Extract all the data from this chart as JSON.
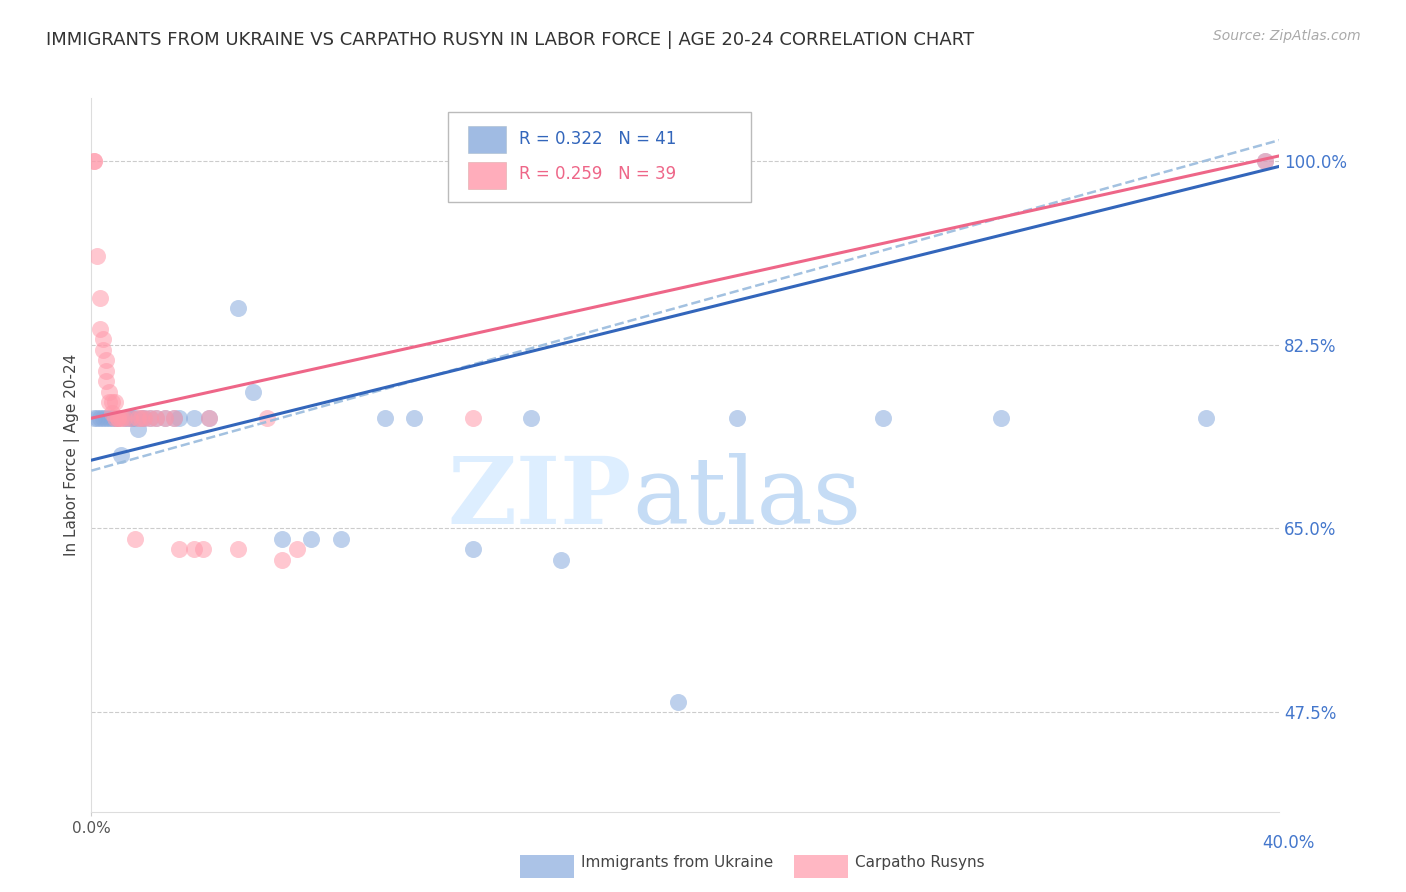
{
  "title": "IMMIGRANTS FROM UKRAINE VS CARPATHO RUSYN IN LABOR FORCE | AGE 20-24 CORRELATION CHART",
  "source": "Source: ZipAtlas.com",
  "ylabel": "In Labor Force | Age 20-24",
  "watermark_zip": "ZIP",
  "watermark_atlas": "atlas",
  "legend_ukraine": "Immigrants from Ukraine",
  "legend_rusyn": "Carpatho Rusyns",
  "R_ukraine": 0.322,
  "N_ukraine": 41,
  "R_rusyn": 0.259,
  "N_rusyn": 39,
  "blue_scatter": "#88AADD",
  "pink_scatter": "#FF99AA",
  "blue_line": "#3366BB",
  "blue_dash": "#99BBDD",
  "pink_line": "#EE6688",
  "right_axis_color": "#4477CC",
  "grid_color": "#CCCCCC",
  "title_color": "#333333",
  "ylabel_color": "#444444",
  "xmin": 0.0,
  "xmax": 0.405,
  "ymin": 0.38,
  "ymax": 1.06,
  "yticks": [
    0.475,
    0.65,
    0.825,
    1.0
  ],
  "ytick_labels": [
    "47.5%",
    "65.0%",
    "82.5%",
    "100.0%"
  ],
  "ukraine_x": [
    0.001,
    0.002,
    0.003,
    0.004,
    0.005,
    0.006,
    0.007,
    0.008,
    0.009,
    0.01,
    0.011,
    0.012,
    0.013,
    0.014,
    0.015,
    0.016,
    0.017,
    0.018,
    0.02,
    0.022,
    0.025,
    0.028,
    0.03,
    0.035,
    0.04,
    0.05,
    0.055,
    0.065,
    0.075,
    0.085,
    0.1,
    0.11,
    0.13,
    0.15,
    0.16,
    0.2,
    0.22,
    0.27,
    0.31,
    0.38,
    0.4
  ],
  "ukraine_y": [
    0.755,
    0.755,
    0.755,
    0.755,
    0.755,
    0.755,
    0.755,
    0.755,
    0.755,
    0.72,
    0.755,
    0.755,
    0.755,
    0.755,
    0.755,
    0.745,
    0.755,
    0.755,
    0.755,
    0.755,
    0.755,
    0.755,
    0.755,
    0.755,
    0.755,
    0.86,
    0.78,
    0.64,
    0.64,
    0.64,
    0.755,
    0.755,
    0.63,
    0.755,
    0.62,
    0.485,
    0.755,
    0.755,
    0.755,
    0.755,
    1.0
  ],
  "rusyn_x": [
    0.001,
    0.001,
    0.002,
    0.003,
    0.003,
    0.004,
    0.004,
    0.005,
    0.005,
    0.005,
    0.006,
    0.006,
    0.007,
    0.007,
    0.008,
    0.008,
    0.009,
    0.009,
    0.01,
    0.011,
    0.013,
    0.015,
    0.016,
    0.017,
    0.018,
    0.02,
    0.022,
    0.025,
    0.028,
    0.03,
    0.035,
    0.038,
    0.04,
    0.05,
    0.06,
    0.065,
    0.07,
    0.13,
    0.4
  ],
  "rusyn_y": [
    1.0,
    1.0,
    0.91,
    0.87,
    0.84,
    0.83,
    0.82,
    0.8,
    0.81,
    0.79,
    0.78,
    0.77,
    0.77,
    0.76,
    0.77,
    0.755,
    0.755,
    0.755,
    0.755,
    0.755,
    0.755,
    0.64,
    0.755,
    0.755,
    0.755,
    0.755,
    0.755,
    0.755,
    0.755,
    0.63,
    0.63,
    0.63,
    0.755,
    0.63,
    0.755,
    0.62,
    0.63,
    0.755,
    1.0
  ],
  "bg_color": "#FFFFFF"
}
